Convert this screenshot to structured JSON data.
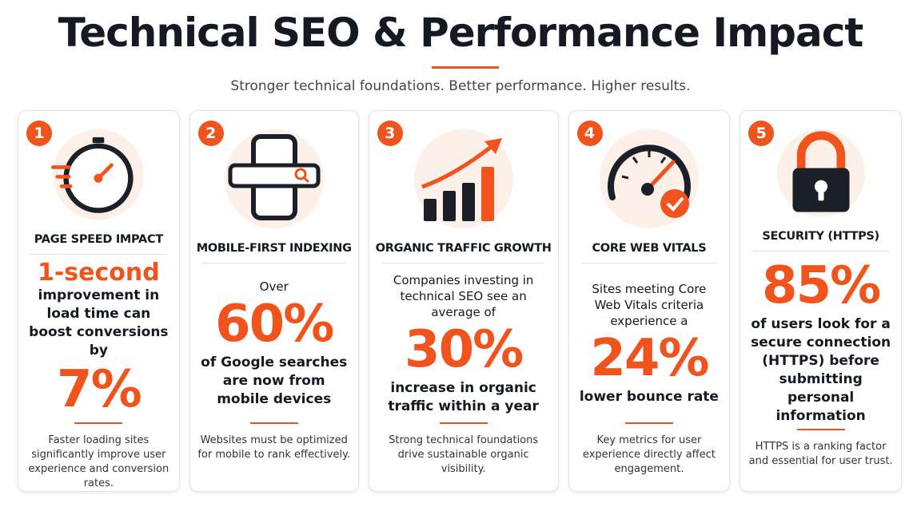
{
  "header": {
    "title": "Technical SEO & Performance Impact",
    "subtitle": "Stronger technical foundations. Better performance. Higher results."
  },
  "cards": [
    {
      "number": "1",
      "heading": "PAGE SPEED IMPACT",
      "content": {
        "lead": "1-second",
        "text": "improvement in load time can boost conversions by",
        "stat": "7%"
      },
      "note": "Faster loading sites significantly improve user experience and conversion rates."
    },
    {
      "number": "2",
      "heading": "MOBILE-FIRST INDEXING",
      "content": {
        "intro": "Over",
        "stat": "60%",
        "text": "of Google searches are now from mobile devices"
      },
      "note": "Websites must be optimized for mobile to rank effectively."
    },
    {
      "number": "3",
      "heading": "ORGANIC TRAFFIC GROWTH",
      "content": {
        "intro": "Companies investing in technical SEO see an average of",
        "stat": "30%",
        "text": "increase in organic traffic within a year"
      },
      "note": "Strong technical foundations drive sustainable organic visibility."
    },
    {
      "number": "4",
      "heading": "CORE WEB VITALS",
      "content": {
        "intro": "Sites meeting Core Web Vitals criteria experience a",
        "stat": "24%",
        "text": "lower bounce rate"
      },
      "note": "Key metrics for user experience directly affect engagement."
    },
    {
      "number": "5",
      "heading": "SECURITY (HTTPS)",
      "content": {
        "stat": "85%",
        "text": "of users look for a secure connection (HTTPS) before submitting personal information"
      },
      "note": "HTTPS is a ranking factor and essential for user trust."
    }
  ]
}
